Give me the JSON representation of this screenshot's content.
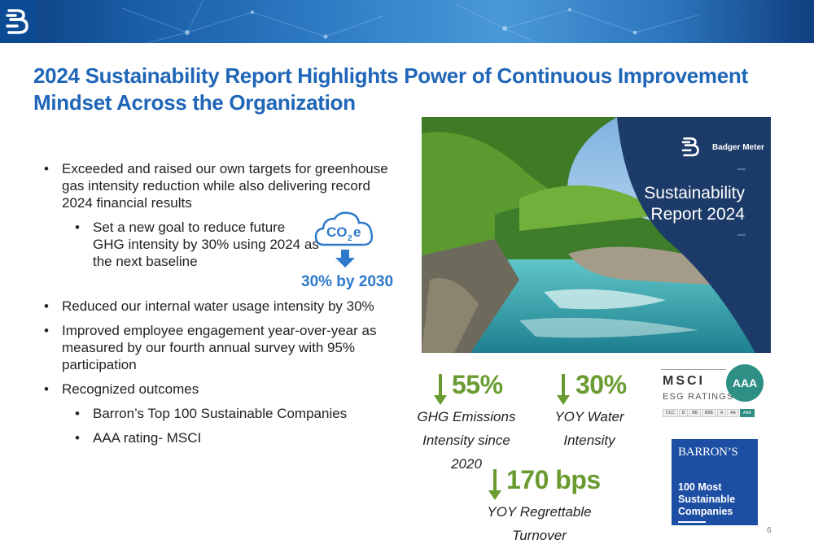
{
  "title": {
    "line1": "2024 Sustainability Report Highlights Power of Continuous Improvement",
    "line2": "Mindset Across the Organization"
  },
  "bullets": {
    "b1": "Exceeded and raised our own targets for greenhouse gas intensity reduction while also delivering record 2024 financial results",
    "b1_sub": "Set a new goal to reduce future GHG intensity by 30% using 2024 as the next baseline",
    "b2": "Reduced our internal water usage intensity by 30%",
    "b3": "Improved employee engagement year-over-year as measured by our fourth annual survey with 95% participation",
    "b4": "Recognized outcomes",
    "b4_sub1": "Barron’s Top 100 Sustainable Companies",
    "b4_sub2": "AAA rating- MSCI"
  },
  "co2_callout": {
    "icon": "co2e-cloud-icon",
    "label_co": "CO",
    "label_sub": "2",
    "label_e": "e",
    "goal": "30% by 2030"
  },
  "cover": {
    "brand": "Badger Meter",
    "title_line1": "Sustainability",
    "title_line2": "Report 2024"
  },
  "stats": {
    "ghg": {
      "value": "55%",
      "cap1": "GHG Emissions",
      "cap2": "Intensity since 2020"
    },
    "water": {
      "value": "30%",
      "cap1": "YOY Water",
      "cap2": "Intensity"
    },
    "turnover": {
      "value": "170 bps",
      "cap1": "YOY Regrettable",
      "cap2": "Turnover"
    }
  },
  "msci": {
    "name": "MSCI",
    "sub": "ESG RATINGS",
    "rating": "AAA",
    "scale": [
      "CCC",
      "B",
      "BB",
      "BBB",
      "A",
      "AA",
      "AAA"
    ]
  },
  "barrons": {
    "name": "BARRON’S",
    "sub": "100 Most Sustainable Companies"
  },
  "page_number": "6",
  "colors": {
    "title_blue": "#1f66b8",
    "stat_green": "#6a9b30",
    "goal_blue": "#2e79c9",
    "msci_teal": "#2e8f84",
    "barrons_blue": "#1c4ea3"
  }
}
